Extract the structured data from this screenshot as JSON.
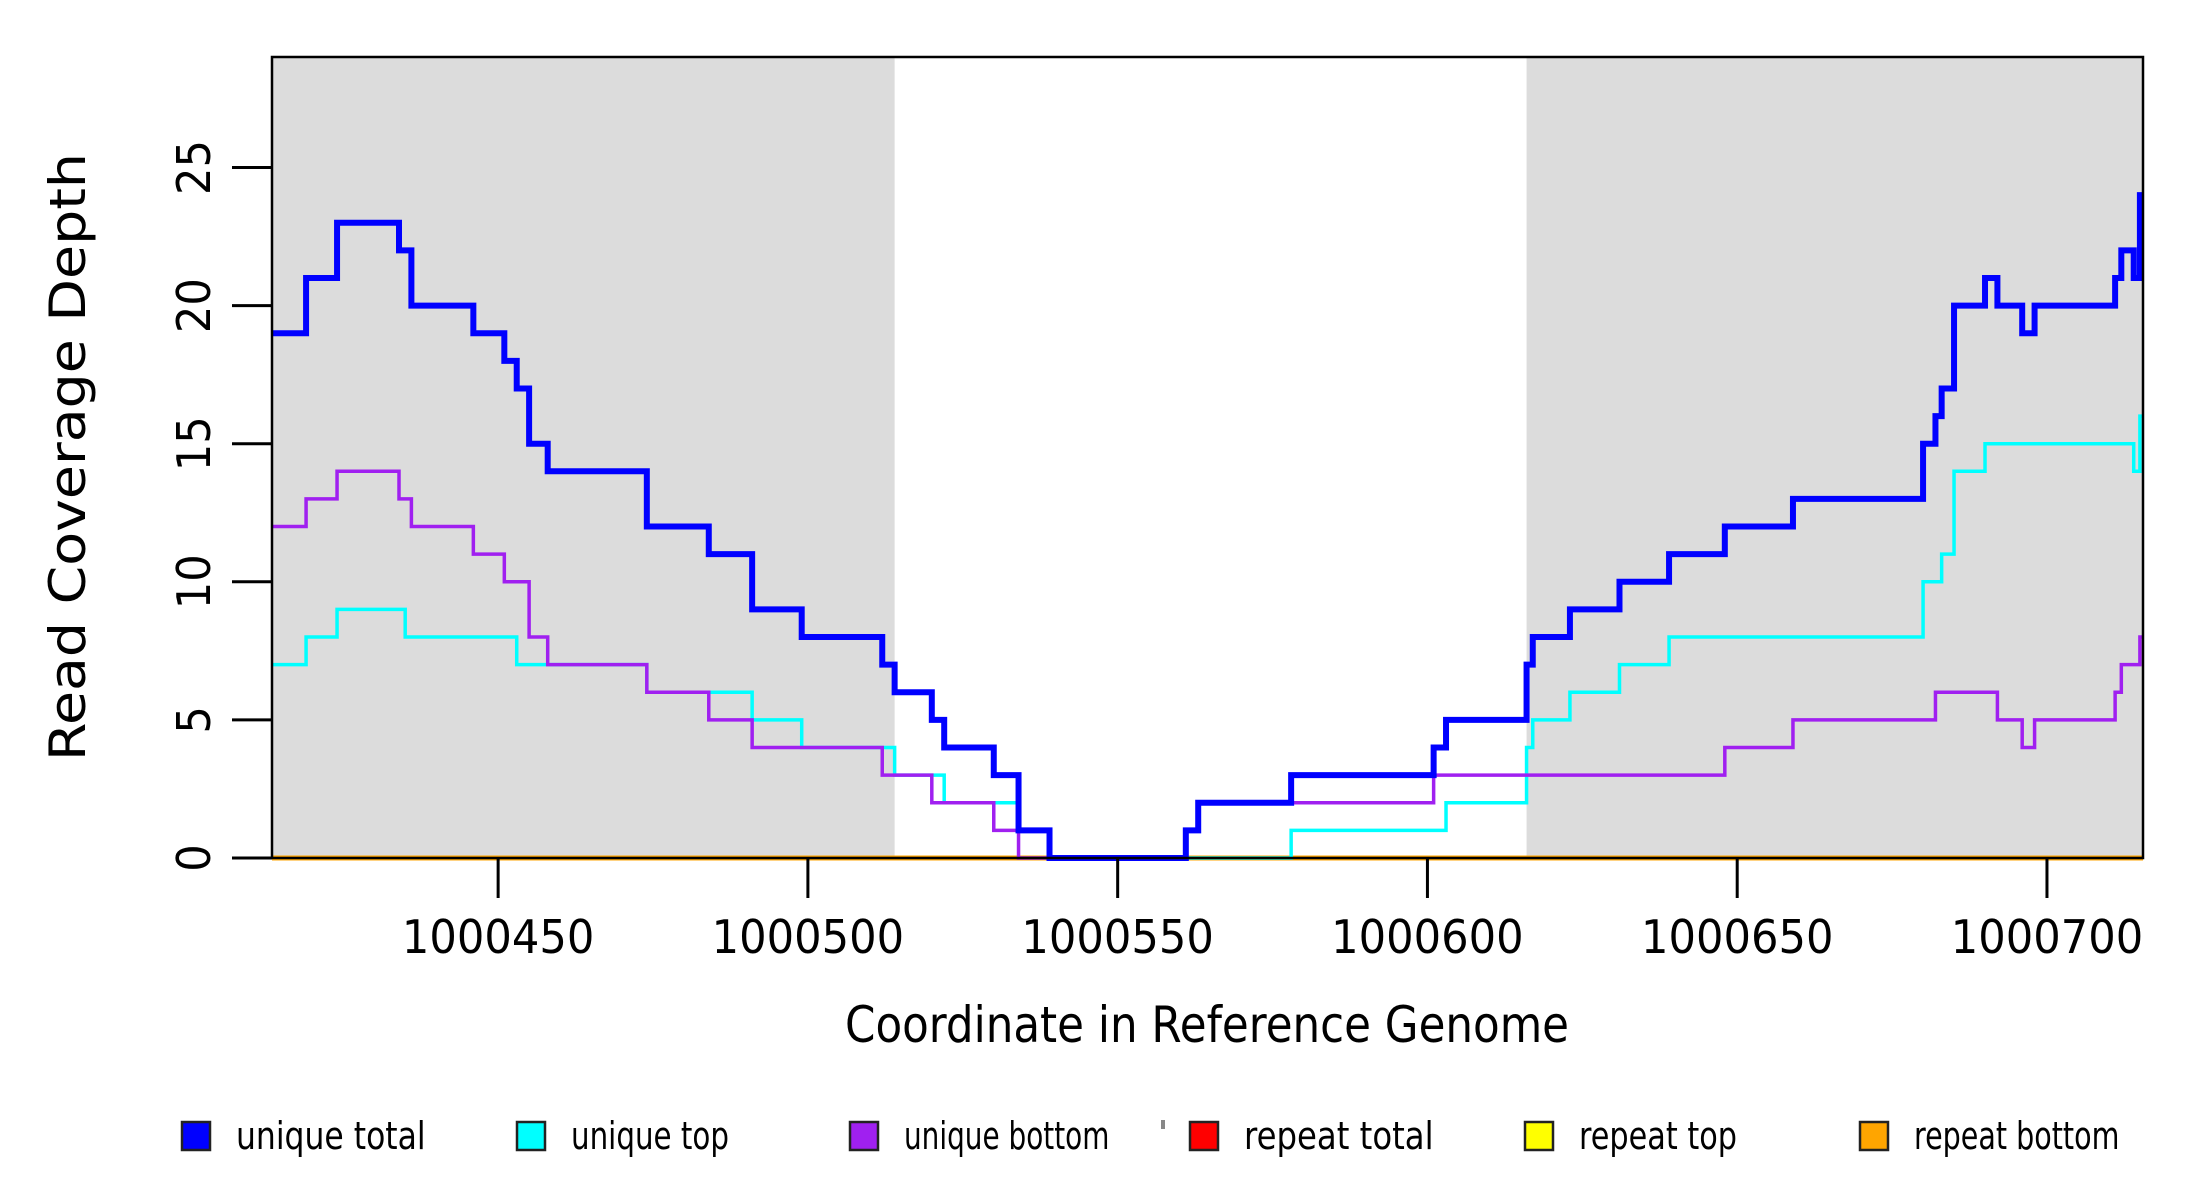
{
  "chart_data": {
    "type": "line",
    "subtype": "step-coverage",
    "title": "",
    "xlabel": "Coordinate in Reference Genome",
    "ylabel": "Read Coverage Depth",
    "xlim": [
      1000413.5,
      1000715.5
    ],
    "ylim": [
      0,
      29
    ],
    "x_ticks": [
      1000450,
      1000500,
      1000550,
      1000600,
      1000650,
      1000700
    ],
    "y_ticks": [
      0,
      5,
      10,
      15,
      20,
      25
    ],
    "grid": "off",
    "shade_color": "#DCDCDC",
    "shaded_regions": [
      {
        "from": 1000413.5,
        "to": 1000514
      },
      {
        "from": 1000616,
        "to": 1000715.5
      }
    ],
    "series": [
      {
        "name": "unique total",
        "color": "#0000FF",
        "width": 6,
        "steps": [
          [
            1000413.5,
            19
          ],
          [
            1000419,
            21
          ],
          [
            1000424,
            23
          ],
          [
            1000434,
            22
          ],
          [
            1000436,
            20
          ],
          [
            1000446,
            19
          ],
          [
            1000451,
            18
          ],
          [
            1000453,
            17
          ],
          [
            1000455,
            15
          ],
          [
            1000458,
            14
          ],
          [
            1000474,
            12
          ],
          [
            1000484,
            11
          ],
          [
            1000491,
            9
          ],
          [
            1000499,
            8
          ],
          [
            1000512,
            7
          ],
          [
            1000514,
            6
          ],
          [
            1000520,
            5
          ],
          [
            1000522,
            4
          ],
          [
            1000530,
            3
          ],
          [
            1000534,
            1
          ],
          [
            1000539,
            0
          ],
          [
            1000561,
            1
          ],
          [
            1000563,
            2
          ],
          [
            1000578,
            3
          ],
          [
            1000601,
            4
          ],
          [
            1000603,
            5
          ],
          [
            1000616,
            7
          ],
          [
            1000617,
            8
          ],
          [
            1000623,
            9
          ],
          [
            1000631,
            10
          ],
          [
            1000639,
            11
          ],
          [
            1000648,
            12
          ],
          [
            1000659,
            13
          ],
          [
            1000680,
            15
          ],
          [
            1000682,
            16
          ],
          [
            1000683,
            17
          ],
          [
            1000685,
            20
          ],
          [
            1000690,
            21
          ],
          [
            1000692,
            20
          ],
          [
            1000696,
            19
          ],
          [
            1000698,
            20
          ],
          [
            1000711,
            21
          ],
          [
            1000712,
            22
          ],
          [
            1000714,
            21
          ],
          [
            1000715,
            24
          ]
        ]
      },
      {
        "name": "unique top",
        "color": "#00FFFF",
        "width": 3.5,
        "steps": [
          [
            1000413.5,
            7
          ],
          [
            1000419,
            8
          ],
          [
            1000424,
            9
          ],
          [
            1000435,
            8
          ],
          [
            1000453,
            7
          ],
          [
            1000474,
            6
          ],
          [
            1000491,
            5
          ],
          [
            1000499,
            4
          ],
          [
            1000514,
            3
          ],
          [
            1000522,
            2
          ],
          [
            1000534,
            1
          ],
          [
            1000539,
            0
          ],
          [
            1000578,
            1
          ],
          [
            1000603,
            2
          ],
          [
            1000616,
            4
          ],
          [
            1000617,
            5
          ],
          [
            1000623,
            6
          ],
          [
            1000631,
            7
          ],
          [
            1000639,
            8
          ],
          [
            1000680,
            10
          ],
          [
            1000683,
            11
          ],
          [
            1000685,
            14
          ],
          [
            1000690,
            15
          ],
          [
            1000714,
            14
          ],
          [
            1000715,
            16
          ]
        ]
      },
      {
        "name": "unique bottom",
        "color": "#A020F0",
        "width": 3.5,
        "steps": [
          [
            1000413.5,
            12
          ],
          [
            1000419,
            13
          ],
          [
            1000424,
            14
          ],
          [
            1000434,
            13
          ],
          [
            1000436,
            12
          ],
          [
            1000446,
            11
          ],
          [
            1000451,
            10
          ],
          [
            1000455,
            8
          ],
          [
            1000458,
            7
          ],
          [
            1000474,
            6
          ],
          [
            1000484,
            5
          ],
          [
            1000491,
            4
          ],
          [
            1000512,
            3
          ],
          [
            1000520,
            2
          ],
          [
            1000530,
            1
          ],
          [
            1000534,
            0
          ],
          [
            1000561,
            1
          ],
          [
            1000563,
            2
          ],
          [
            1000601,
            3
          ],
          [
            1000648,
            4
          ],
          [
            1000659,
            5
          ],
          [
            1000682,
            6
          ],
          [
            1000692,
            5
          ],
          [
            1000696,
            4
          ],
          [
            1000698,
            5
          ],
          [
            1000711,
            6
          ],
          [
            1000712,
            7
          ],
          [
            1000715,
            8
          ]
        ]
      },
      {
        "name": "repeat total",
        "color": "#FF0000",
        "width": 3.5,
        "steps": [
          [
            1000413.5,
            0
          ]
        ]
      },
      {
        "name": "repeat top",
        "color": "#FFFF00",
        "width": 3.5,
        "steps": [
          [
            1000413.5,
            0
          ]
        ]
      },
      {
        "name": "repeat bottom",
        "color": "#FFA500",
        "width": 5,
        "steps": [
          [
            1000413.5,
            0
          ]
        ]
      }
    ],
    "draw_order": [
      "repeat total",
      "repeat top",
      "repeat bottom",
      "unique top",
      "unique bottom",
      "unique total"
    ],
    "legend": {
      "position": "bottom",
      "items": [
        {
          "label": "unique total",
          "color": "#0000FF"
        },
        {
          "label": "unique top",
          "color": "#00FFFF"
        },
        {
          "label": "unique bottom",
          "color": "#A020F0"
        },
        {
          "label": "repeat total",
          "color": "#FF0000"
        },
        {
          "label": "repeat top",
          "color": "#FFFF00"
        },
        {
          "label": "repeat bottom",
          "color": "#FFA500"
        }
      ]
    }
  }
}
